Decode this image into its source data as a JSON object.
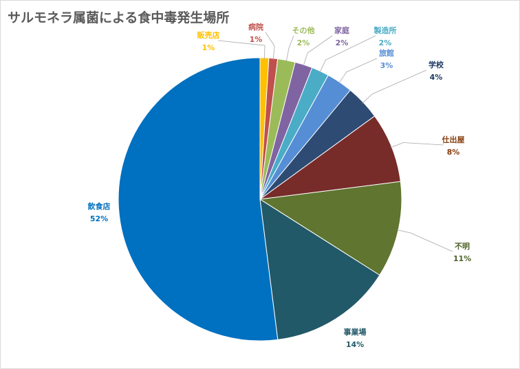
{
  "chart_data": {
    "type": "pie",
    "title": "サルモネラ属菌による食中毒発生場所",
    "slices": [
      {
        "label": "販売店",
        "value": 1,
        "pct_text": "1%",
        "color": "#FFC000",
        "label_color": "#FFC000"
      },
      {
        "label": "病院",
        "value": 1,
        "pct_text": "1%",
        "color": "#C0504D",
        "label_color": "#C0504D"
      },
      {
        "label": "その他",
        "value": 2,
        "pct_text": "2%",
        "color": "#9BBB59",
        "label_color": "#9BBB59"
      },
      {
        "label": "家庭",
        "value": 2,
        "pct_text": "2%",
        "color": "#8064A2",
        "label_color": "#8064A2"
      },
      {
        "label": "製造所",
        "value": 2,
        "pct_text": "2%",
        "color": "#4BACC6",
        "label_color": "#4BACC6"
      },
      {
        "label": "旅館",
        "value": 3,
        "pct_text": "3%",
        "color": "#558ED5",
        "label_color": "#558ED5"
      },
      {
        "label": "学校",
        "value": 4,
        "pct_text": "4%",
        "color": "#2D4B73",
        "label_color": "#1F3864"
      },
      {
        "label": "仕出屋",
        "value": 8,
        "pct_text": "8%",
        "color": "#772C2A",
        "label_color": "#843C0C"
      },
      {
        "label": "不明",
        "value": 11,
        "pct_text": "11%",
        "color": "#5F7530",
        "label_color": "#4F6228"
      },
      {
        "label": "事業場",
        "value": 14,
        "pct_text": "14%",
        "color": "#215968",
        "label_color": "#215968"
      },
      {
        "label": "飲食店",
        "value": 52,
        "pct_text": "52%",
        "color": "#0070C0",
        "label_color": "#0070C0"
      }
    ]
  }
}
